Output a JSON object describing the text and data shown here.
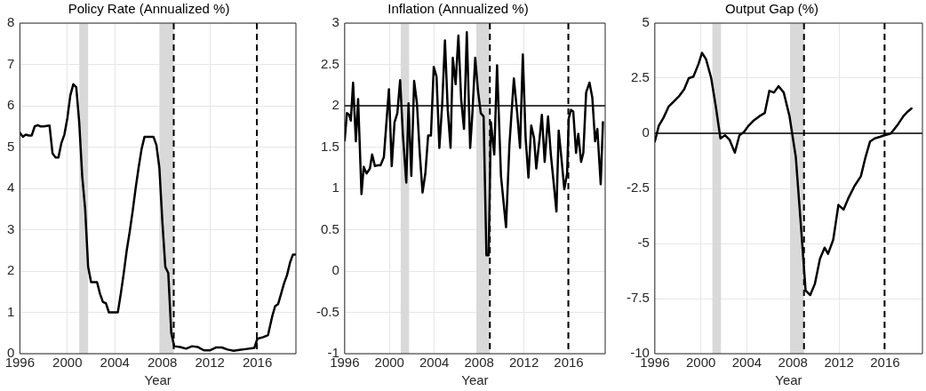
{
  "chart_data": [
    {
      "type": "line",
      "title": "Policy Rate (Annualized %)",
      "xlabel": "Year",
      "xlim": [
        1996,
        2019.25
      ],
      "xticks": [
        1996,
        2000,
        2004,
        2008,
        2012,
        2016
      ],
      "ylim": [
        0,
        8
      ],
      "yticks": [
        0,
        1,
        2,
        3,
        4,
        5,
        6,
        7,
        8
      ],
      "grid": true,
      "marker": "none",
      "line_style": "solid",
      "bands": [
        {
          "axis": "x",
          "from": 2001.0,
          "to": 2001.75,
          "color": "#d9d9d9"
        },
        {
          "axis": "x",
          "from": 2007.75,
          "to": 2008.96,
          "color": "#d9d9d9"
        }
      ],
      "ref_lines": [
        {
          "axis": "x",
          "value": 2008.96,
          "color": "#000000",
          "line_style": "dashed"
        },
        {
          "axis": "x",
          "value": 2015.96,
          "color": "#000000",
          "line_style": "dashed"
        }
      ],
      "series": [
        {
          "color": "#000000",
          "x": [
            1996.0,
            1996.25,
            1996.5,
            1996.75,
            1997.0,
            1997.25,
            1997.5,
            1997.75,
            1998.0,
            1998.5,
            1998.75,
            1999.0,
            1999.25,
            1999.5,
            1999.75,
            2000.0,
            2000.25,
            2000.5,
            2000.75,
            2001.0,
            2001.25,
            2001.5,
            2001.75,
            2002.0,
            2002.5,
            2002.75,
            2003.0,
            2003.25,
            2003.5,
            2003.75,
            2004.0,
            2004.25,
            2004.5,
            2004.75,
            2005.0,
            2005.25,
            2005.5,
            2005.75,
            2006.0,
            2006.25,
            2006.5,
            2006.75,
            2007.0,
            2007.25,
            2007.5,
            2007.75,
            2008.0,
            2008.25,
            2008.5,
            2008.75,
            2009.0,
            2009.5,
            2010.0,
            2010.5,
            2011.0,
            2011.5,
            2012.0,
            2012.5,
            2013.0,
            2013.5,
            2014.0,
            2014.5,
            2015.0,
            2015.75,
            2016.0,
            2016.5,
            2016.9,
            2017.25,
            2017.5,
            2017.75,
            2018.0,
            2018.25,
            2018.5,
            2018.75,
            2019.0,
            2019.2
          ],
          "values": [
            5.35,
            5.25,
            5.3,
            5.28,
            5.28,
            5.5,
            5.53,
            5.5,
            5.5,
            5.52,
            4.85,
            4.75,
            4.75,
            5.1,
            5.3,
            5.7,
            6.25,
            6.52,
            6.45,
            5.6,
            4.3,
            3.5,
            2.1,
            1.73,
            1.73,
            1.45,
            1.25,
            1.22,
            1.0,
            1.0,
            1.0,
            1.0,
            1.45,
            1.95,
            2.5,
            2.95,
            3.45,
            4.0,
            4.5,
            4.95,
            5.25,
            5.25,
            5.25,
            5.25,
            5.05,
            4.5,
            3.2,
            2.1,
            1.95,
            0.5,
            0.18,
            0.16,
            0.12,
            0.18,
            0.16,
            0.08,
            0.08,
            0.15,
            0.15,
            0.1,
            0.07,
            0.09,
            0.11,
            0.14,
            0.36,
            0.4,
            0.45,
            0.9,
            1.15,
            1.2,
            1.45,
            1.7,
            1.9,
            2.2,
            2.4,
            2.4
          ]
        }
      ]
    },
    {
      "type": "line",
      "title": "Inflation (Annualized %)",
      "xlabel": "Year",
      "xlim": [
        1996,
        2019.25
      ],
      "xticks": [
        1996,
        2000,
        2004,
        2008,
        2012,
        2016
      ],
      "ylim": [
        -1,
        3
      ],
      "yticks": [
        -1,
        -0.5,
        0,
        0.5,
        1,
        1.5,
        2,
        2.5,
        3
      ],
      "grid": true,
      "marker": "none",
      "line_style": "solid",
      "bands": [
        {
          "axis": "x",
          "from": 2001.0,
          "to": 2001.75,
          "color": "#d9d9d9"
        },
        {
          "axis": "x",
          "from": 2007.75,
          "to": 2008.96,
          "color": "#d9d9d9"
        }
      ],
      "ref_lines": [
        {
          "axis": "x",
          "value": 2008.96,
          "color": "#000000",
          "line_style": "dashed"
        },
        {
          "axis": "x",
          "value": 2015.96,
          "color": "#000000",
          "line_style": "dashed"
        },
        {
          "axis": "y",
          "value": 2,
          "color": "#000000",
          "line_style": "solid"
        }
      ],
      "series": [
        {
          "color": "#000000",
          "x": [
            1996.0,
            1996.2,
            1996.4,
            1996.55,
            1996.75,
            1997.0,
            1997.2,
            1997.5,
            1997.7,
            1997.95,
            1998.25,
            1998.45,
            1998.7,
            1998.95,
            1999.2,
            1999.5,
            1999.75,
            1999.95,
            2000.2,
            2000.45,
            2000.7,
            2000.95,
            2001.2,
            2001.5,
            2001.7,
            2001.95,
            2002.2,
            2002.45,
            2002.7,
            2002.95,
            2003.2,
            2003.45,
            2003.7,
            2003.95,
            2004.2,
            2004.45,
            2004.7,
            2004.95,
            2005.2,
            2005.45,
            2005.65,
            2005.9,
            2006.15,
            2006.4,
            2006.65,
            2006.9,
            2007.2,
            2007.4,
            2007.65,
            2007.9,
            2008.15,
            2008.4,
            2008.65,
            2008.85,
            2009.05,
            2009.35,
            2009.6,
            2009.95,
            2010.4,
            2010.7,
            2011.1,
            2011.4,
            2011.65,
            2011.9,
            2012.15,
            2012.4,
            2012.65,
            2012.9,
            2013.1,
            2013.4,
            2013.6,
            2013.85,
            2014.15,
            2014.4,
            2014.65,
            2014.9,
            2015.1,
            2015.35,
            2015.6,
            2015.85,
            2016.0,
            2016.2,
            2016.4,
            2016.65,
            2016.85,
            2017.1,
            2017.3,
            2017.55,
            2017.85,
            2018.1,
            2018.35,
            2018.55,
            2018.85,
            2019.05
          ],
          "values": [
            1.58,
            1.91,
            1.89,
            1.82,
            2.28,
            1.57,
            2.08,
            0.93,
            1.26,
            1.18,
            1.24,
            1.41,
            1.27,
            1.28,
            1.28,
            1.38,
            1.84,
            2.2,
            1.27,
            1.8,
            1.91,
            2.31,
            1.64,
            1.07,
            2.03,
            1.15,
            2.3,
            2.03,
            1.43,
            0.95,
            1.18,
            1.64,
            1.64,
            2.47,
            2.35,
            1.49,
            2.01,
            2.79,
            1.95,
            1.49,
            2.58,
            2.26,
            2.85,
            2.07,
            1.72,
            2.89,
            1.49,
            1.91,
            2.58,
            2.18,
            1.91,
            1.87,
            0.19,
            0.19,
            1.8,
            1.41,
            2.49,
            1.15,
            0.53,
            1.52,
            2.33,
            1.91,
            1.49,
            2.62,
            1.61,
            1.13,
            1.76,
            1.61,
            1.24,
            1.61,
            1.89,
            1.32,
            1.87,
            1.41,
            1.07,
            0.72,
            1.7,
            1.36,
            0.99,
            1.18,
            1.85,
            1.95,
            1.93,
            1.43,
            1.66,
            1.32,
            1.43,
            2.16,
            2.28,
            2.1,
            1.57,
            1.72,
            1.05,
            1.8
          ]
        }
      ]
    },
    {
      "type": "line",
      "title": "Output Gap (%)",
      "xlabel": "Year",
      "xlim": [
        1996,
        2019.25
      ],
      "xticks": [
        1996,
        2000,
        2004,
        2008,
        2012,
        2016
      ],
      "ylim": [
        -10,
        5
      ],
      "yticks": [
        -10,
        -7.5,
        -5,
        -2.5,
        0,
        2.5,
        5
      ],
      "grid": true,
      "marker": "none",
      "line_style": "solid",
      "bands": [
        {
          "axis": "x",
          "from": 2001.0,
          "to": 2001.75,
          "color": "#d9d9d9"
        },
        {
          "axis": "x",
          "from": 2007.75,
          "to": 2008.96,
          "color": "#d9d9d9"
        }
      ],
      "ref_lines": [
        {
          "axis": "x",
          "value": 2008.96,
          "color": "#000000",
          "line_style": "dashed"
        },
        {
          "axis": "x",
          "value": 2015.96,
          "color": "#000000",
          "line_style": "dashed"
        },
        {
          "axis": "y",
          "value": 0,
          "color": "#000000",
          "line_style": "solid"
        }
      ],
      "series": [
        {
          "color": "#000000",
          "x": [
            1996.0,
            1996.35,
            1996.75,
            1997.2,
            1997.6,
            1998.15,
            1998.55,
            1998.95,
            1999.35,
            1999.8,
            2000.1,
            2000.45,
            2000.9,
            2001.3,
            2001.7,
            2002.1,
            2002.5,
            2002.95,
            2003.35,
            2003.75,
            2004.15,
            2004.55,
            2005.1,
            2005.55,
            2005.95,
            2006.35,
            2006.75,
            2007.2,
            2007.7,
            2008.25,
            2008.7,
            2009.1,
            2009.5,
            2009.9,
            2010.35,
            2010.75,
            2011.05,
            2011.5,
            2011.95,
            2012.4,
            2012.8,
            2013.35,
            2013.9,
            2014.3,
            2014.7,
            2015.1,
            2015.55,
            2015.95,
            2016.5,
            2017.05,
            2017.6,
            2018.0,
            2018.3
          ],
          "values": [
            -0.37,
            0.35,
            0.7,
            1.21,
            1.42,
            1.71,
            2.0,
            2.5,
            2.57,
            3.15,
            3.65,
            3.36,
            2.5,
            1.21,
            -0.23,
            -0.09,
            -0.3,
            -0.88,
            -0.09,
            0.06,
            0.35,
            0.56,
            0.78,
            0.92,
            1.93,
            1.85,
            2.14,
            1.85,
            0.78,
            -1.09,
            -4.25,
            -7.13,
            -7.34,
            -6.84,
            -5.69,
            -5.19,
            -5.47,
            -4.83,
            -3.25,
            -3.46,
            -2.96,
            -2.39,
            -1.95,
            -1.09,
            -0.37,
            -0.23,
            -0.16,
            -0.09,
            -0.01,
            0.35,
            0.78,
            1.0,
            1.13
          ]
        }
      ]
    }
  ]
}
